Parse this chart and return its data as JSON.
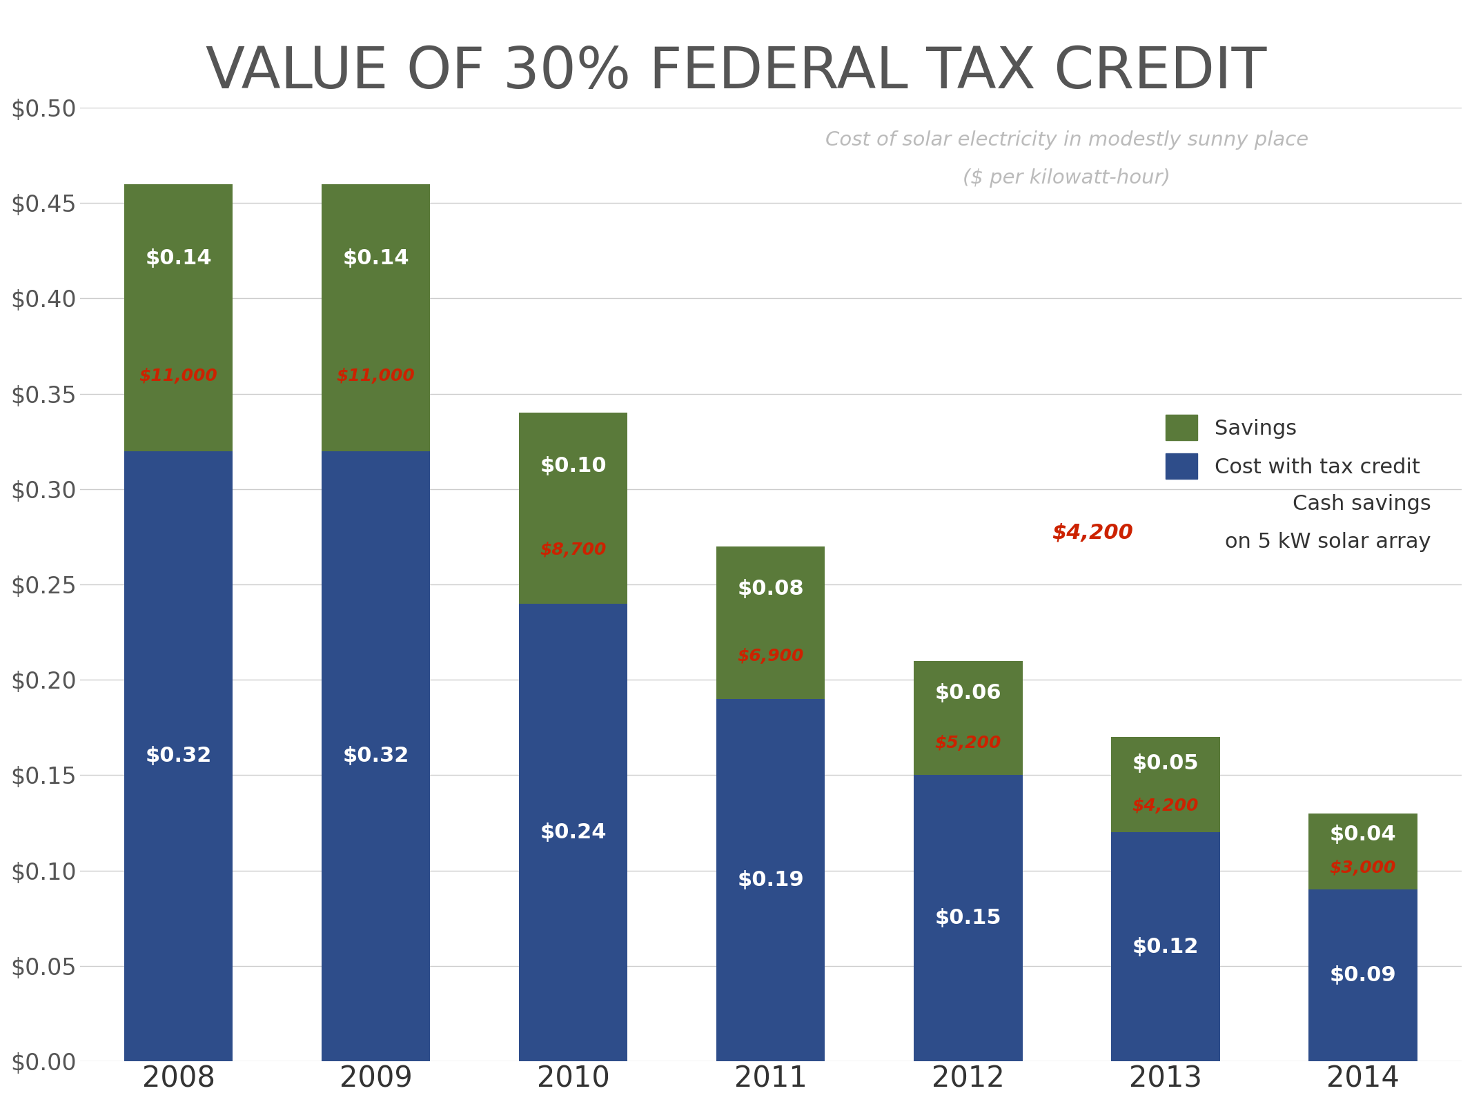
{
  "title": "VALUE OF 30% FEDERAL TAX CREDIT",
  "years": [
    "2008",
    "2009",
    "2010",
    "2011",
    "2012",
    "2013",
    "2014"
  ],
  "cost_with_credit": [
    0.32,
    0.32,
    0.24,
    0.19,
    0.15,
    0.12,
    0.09
  ],
  "savings": [
    0.14,
    0.14,
    0.1,
    0.08,
    0.06,
    0.05,
    0.04
  ],
  "cash_savings": [
    "$11,000",
    "$11,000",
    "$8,700",
    "$6,900",
    "$5,200",
    "$4,200",
    "$3,000"
  ],
  "cost_labels": [
    "$0.32",
    "$0.32",
    "$0.24",
    "$0.19",
    "$0.15",
    "$0.12",
    "$0.09"
  ],
  "savings_labels": [
    "$0.14",
    "$0.14",
    "$0.10",
    "$0.08",
    "$0.06",
    "$0.05",
    "$0.04"
  ],
  "bar_color_blue": "#2E4D8A",
  "bar_color_green": "#5A7A3A",
  "background_color": "#FFFFFF",
  "title_color": "#555555",
  "ytick_color": "#555555",
  "xtick_color": "#333333",
  "cash_savings_color": "#CC2200",
  "grid_color": "#CCCCCC",
  "legend_text_color": "#333333",
  "annotation_text_line1": "Cost of solar electricity in modestly sunny place",
  "annotation_text_line2": "($ per kilowatt-hour)",
  "annotation_text_color_gray": "#BBBBBB",
  "ylim": [
    0,
    0.5
  ],
  "yticks": [
    0.0,
    0.05,
    0.1,
    0.15,
    0.2,
    0.25,
    0.3,
    0.35,
    0.4,
    0.45,
    0.5
  ],
  "cash_savings_note": "$4,200",
  "legend_savings_label": "Savings",
  "legend_credit_label": "Cost with tax credit",
  "legend_cash_label_line1": "Cash savings",
  "legend_cash_label_line2": "on 5 kW solar array"
}
